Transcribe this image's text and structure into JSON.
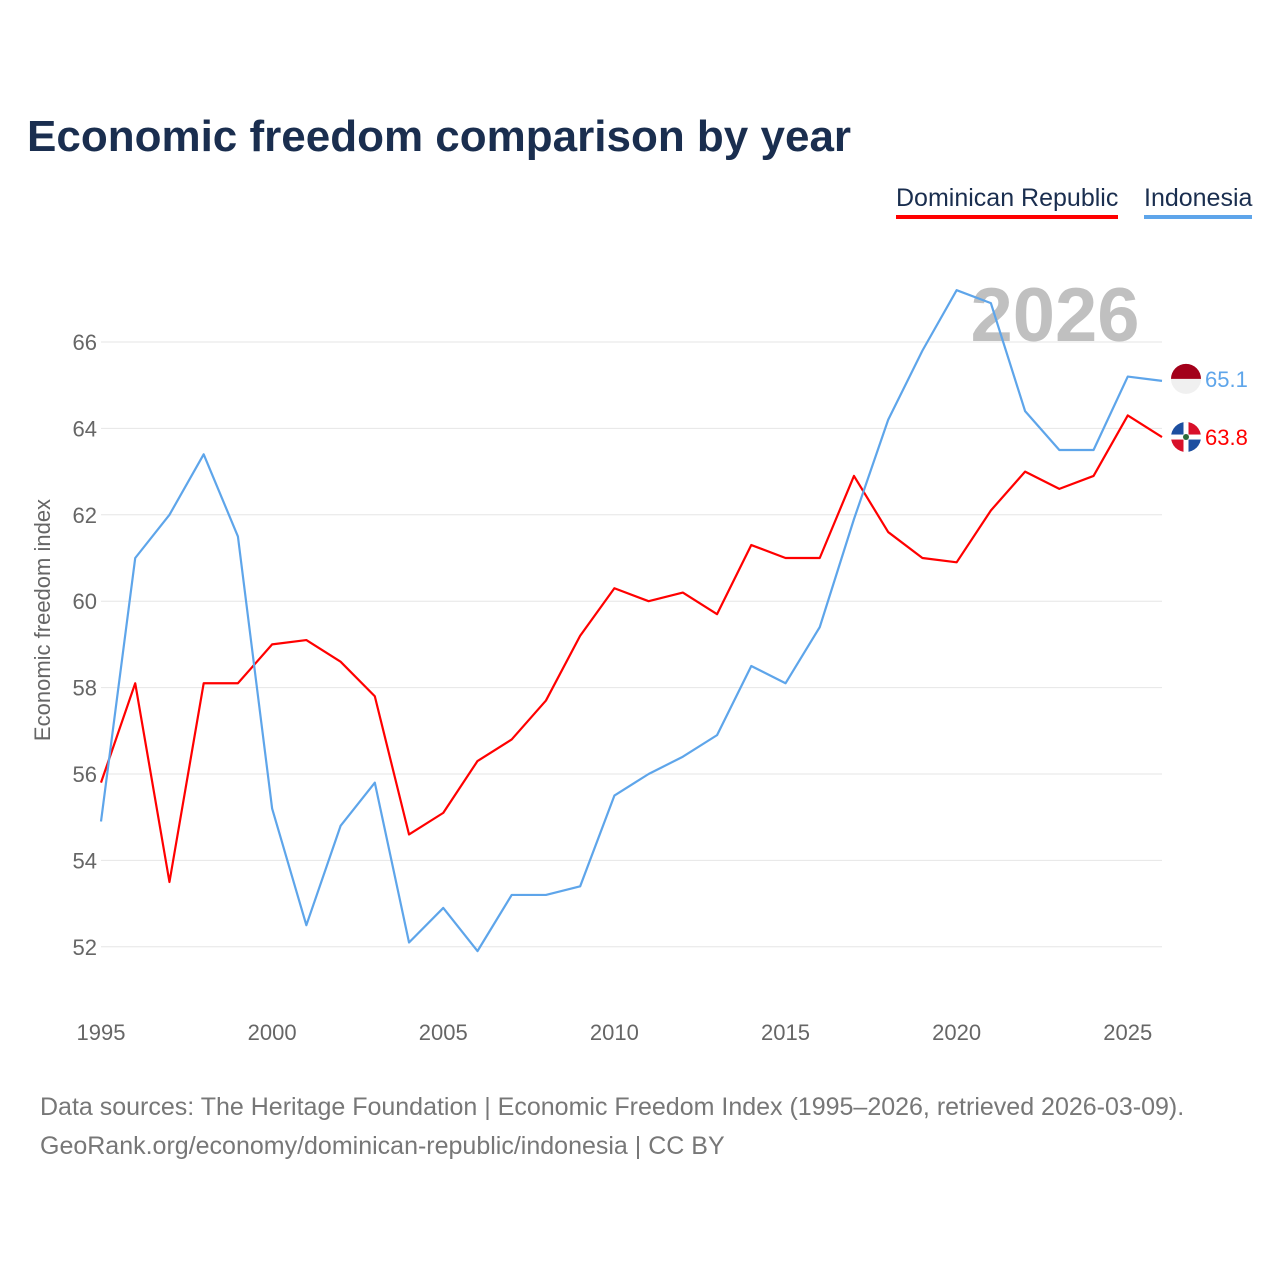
{
  "chart_data": {
    "type": "line",
    "title": "Economic freedom comparison by year",
    "ylabel": "Economic freedom index",
    "xlabel": "",
    "year_watermark": "2026",
    "x": [
      1995,
      1996,
      1997,
      1998,
      1999,
      2000,
      2001,
      2002,
      2003,
      2004,
      2005,
      2006,
      2007,
      2008,
      2009,
      2010,
      2011,
      2012,
      2013,
      2014,
      2015,
      2016,
      2017,
      2018,
      2019,
      2020,
      2021,
      2022,
      2023,
      2024,
      2025,
      2026
    ],
    "xticks": [
      1995,
      2000,
      2005,
      2010,
      2015,
      2020,
      2025
    ],
    "yticks": [
      52,
      54,
      56,
      58,
      60,
      62,
      64,
      66
    ],
    "xlim": [
      1995,
      2026
    ],
    "ylim": [
      50.8,
      67.9
    ],
    "grid": true,
    "legend_position": "top-right",
    "series": [
      {
        "name": "Dominican Republic",
        "color": "#ff0000",
        "end_label": "63.8",
        "values": [
          55.8,
          58.1,
          53.5,
          58.1,
          58.1,
          59.0,
          59.1,
          58.6,
          57.8,
          54.6,
          55.1,
          56.3,
          56.8,
          57.7,
          59.2,
          60.3,
          60.0,
          60.2,
          59.7,
          61.3,
          61.0,
          61.0,
          62.9,
          61.6,
          61.0,
          60.9,
          62.1,
          63.0,
          62.6,
          62.9,
          64.3,
          63.8
        ]
      },
      {
        "name": "Indonesia",
        "color": "#5ea5ea",
        "end_label": "65.1",
        "values": [
          54.9,
          61.0,
          62.0,
          63.4,
          61.5,
          55.2,
          52.5,
          54.8,
          55.8,
          52.1,
          52.9,
          51.9,
          53.2,
          53.2,
          53.4,
          55.5,
          56.0,
          56.4,
          56.9,
          58.5,
          58.1,
          59.4,
          61.9,
          64.2,
          65.8,
          67.2,
          66.9,
          64.4,
          63.5,
          63.5,
          65.2,
          65.1
        ]
      }
    ]
  },
  "source": {
    "line1": "Data sources: The Heritage Foundation | Economic Freedom Index (1995–2026, retrieved 2026-03-09).",
    "line2": "GeoRank.org/economy/dominican-republic/indonesia | CC BY"
  }
}
